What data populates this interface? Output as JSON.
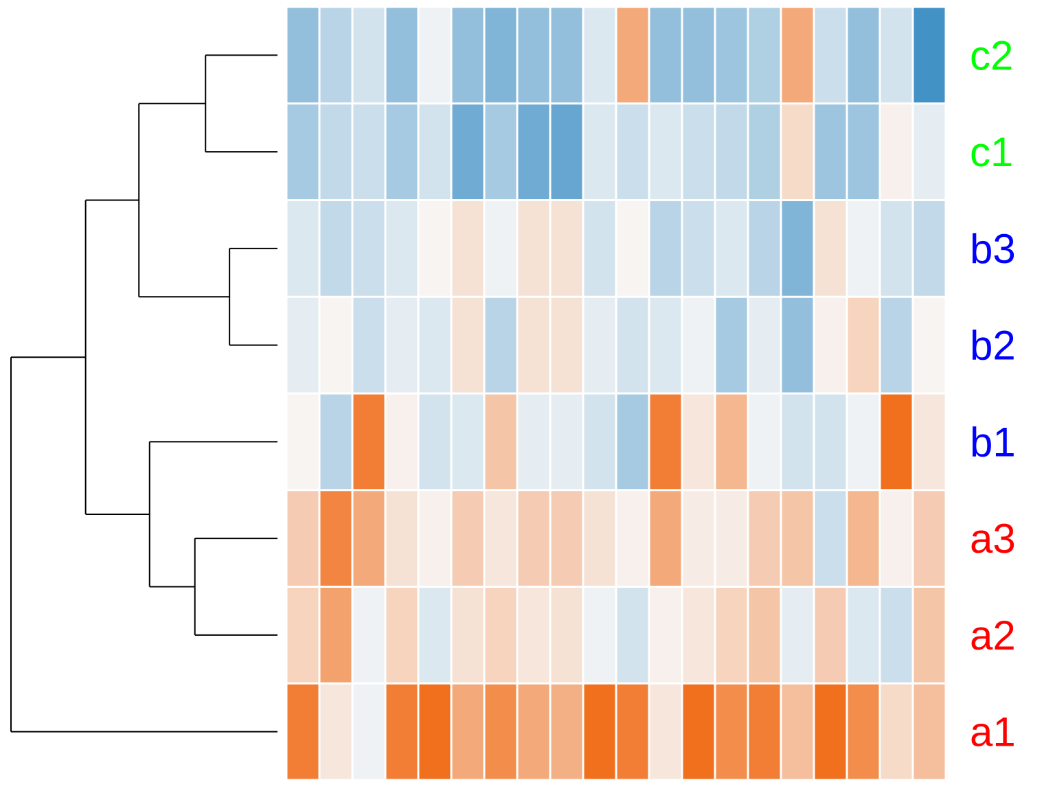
{
  "chart_data": {
    "type": "heatmap",
    "title": "",
    "xlabel": "",
    "ylabel": "",
    "rows": [
      "c2",
      "c1",
      "b3",
      "b2",
      "b1",
      "a3",
      "a2",
      "a1"
    ],
    "row_label_colors": {
      "c2": "#00ff00",
      "c1": "#00ff00",
      "b3": "#0000ff",
      "b2": "#0000ff",
      "b1": "#0000ff",
      "a3": "#ff0000",
      "a2": "#ff0000",
      "a1": "#ff0000"
    },
    "value_range": [
      -1,
      1
    ],
    "color_scale": {
      "low": "#4292c6",
      "mid": "#f7f7f7",
      "high": "#f16913"
    },
    "values": [
      [
        -0.55,
        -0.35,
        -0.2,
        -0.55,
        -0.05,
        -0.55,
        -0.65,
        -0.55,
        -0.55,
        -0.15,
        0.55,
        -0.55,
        -0.55,
        -0.5,
        -0.4,
        0.55,
        -0.25,
        -0.55,
        -0.2,
        -1.0
      ],
      [
        -0.45,
        -0.3,
        -0.25,
        -0.45,
        -0.2,
        -0.75,
        -0.45,
        -0.75,
        -0.8,
        -0.15,
        -0.25,
        -0.15,
        -0.25,
        -0.3,
        -0.4,
        0.2,
        -0.5,
        -0.5,
        0.05,
        -0.1
      ],
      [
        -0.15,
        -0.3,
        -0.25,
        -0.15,
        0.02,
        0.15,
        -0.05,
        0.15,
        0.15,
        -0.2,
        0.02,
        -0.35,
        -0.25,
        -0.15,
        -0.35,
        -0.65,
        0.15,
        -0.05,
        -0.2,
        -0.3
      ],
      [
        -0.1,
        0.02,
        -0.25,
        -0.1,
        -0.15,
        0.15,
        -0.35,
        0.15,
        0.15,
        -0.1,
        -0.2,
        -0.15,
        -0.05,
        -0.45,
        -0.1,
        -0.55,
        0.05,
        0.25,
        -0.35,
        0.02
      ],
      [
        0.02,
        -0.35,
        0.85,
        0.05,
        -0.2,
        -0.15,
        0.35,
        -0.1,
        -0.1,
        -0.2,
        -0.45,
        0.85,
        0.12,
        0.45,
        -0.05,
        -0.2,
        -0.2,
        -0.05,
        0.95,
        0.12
      ],
      [
        0.3,
        0.8,
        0.55,
        0.15,
        0.05,
        0.3,
        0.12,
        0.3,
        0.3,
        0.15,
        0.05,
        0.55,
        0.08,
        0.08,
        0.3,
        0.35,
        -0.25,
        0.45,
        0.05,
        0.3
      ],
      [
        0.25,
        0.6,
        -0.05,
        0.25,
        -0.15,
        0.15,
        0.25,
        0.12,
        0.15,
        -0.05,
        -0.2,
        0.05,
        0.12,
        0.25,
        0.35,
        -0.1,
        0.3,
        -0.15,
        -0.25,
        0.35
      ],
      [
        0.85,
        0.12,
        -0.05,
        0.85,
        0.95,
        0.55,
        0.75,
        0.55,
        0.5,
        0.95,
        0.85,
        0.12,
        0.95,
        0.75,
        0.85,
        0.4,
        0.95,
        0.75,
        0.2,
        0.4
      ]
    ],
    "dendrogram": {
      "leaves_order": [
        "c2",
        "c1",
        "b3",
        "b2",
        "b1",
        "a3",
        "a2",
        "a1"
      ],
      "merges": [
        {
          "id": "n1",
          "children": [
            "c2",
            "c1"
          ],
          "height": 0.27
        },
        {
          "id": "n2",
          "children": [
            "b3",
            "b2"
          ],
          "height": 0.18
        },
        {
          "id": "n3",
          "children": [
            "n1",
            "n2"
          ],
          "height": 0.52
        },
        {
          "id": "n4",
          "children": [
            "a3",
            "a2"
          ],
          "height": 0.31
        },
        {
          "id": "n5",
          "children": [
            "b1",
            "n4"
          ],
          "height": 0.48
        },
        {
          "id": "n6",
          "children": [
            "n3",
            "n5"
          ],
          "height": 0.72
        },
        {
          "id": "n7",
          "children": [
            "n6",
            "a1"
          ],
          "height": 1.0
        }
      ]
    }
  }
}
